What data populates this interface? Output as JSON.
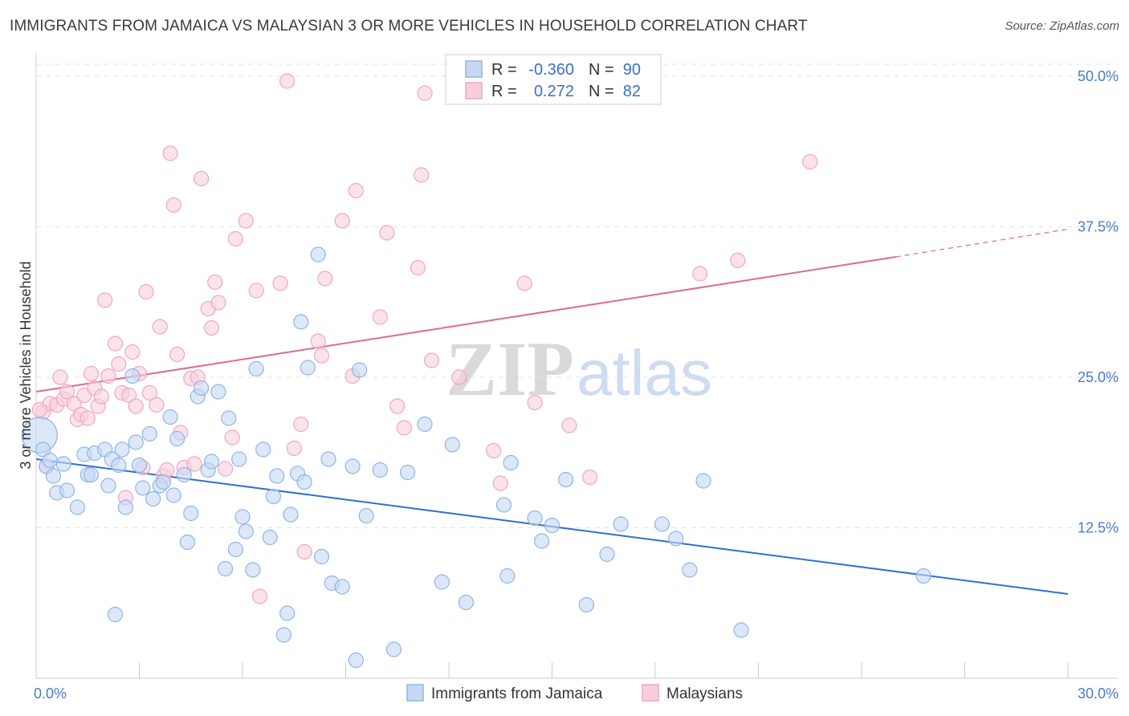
{
  "header": {
    "title": "IMMIGRANTS FROM JAMAICA VS MALAYSIAN 3 OR MORE VEHICLES IN HOUSEHOLD CORRELATION CHART",
    "source": "Source: ZipAtlas.com"
  },
  "watermark": {
    "zip": "ZIP",
    "atlas": "atlas"
  },
  "legend": {
    "rows": [
      {
        "r_label": "R =",
        "r_value": "-0.360",
        "n_label": "N =",
        "n_value": "90"
      },
      {
        "r_label": "R =",
        "r_value": "0.272",
        "n_label": "N =",
        "n_value": "82"
      }
    ]
  },
  "chart_data": {
    "type": "scatter",
    "title": "IMMIGRANTS FROM JAMAICA VS MALAYSIAN 3 OR MORE VEHICLES IN HOUSEHOLD CORRELATION CHART",
    "xlabel": "",
    "ylabel": "3 or more Vehicles in Household",
    "xlim": [
      0,
      30
    ],
    "ylim": [
      0,
      51
    ],
    "x_tick_labels": [
      "0.0%",
      "30.0%"
    ],
    "y_ticks": [
      12.5,
      25.0,
      37.5,
      50.0
    ],
    "y_tick_labels": [
      "12.5%",
      "25.0%",
      "37.5%",
      "50.0%"
    ],
    "grid": true,
    "legend_position": "top-center",
    "series": [
      {
        "name": "Immigrants from Jamaica",
        "color": "#8fb4e6",
        "fill": "#c5d9f3",
        "line_color": "#2f6fd0",
        "r": -0.36,
        "n": 90,
        "trend": {
          "x0": 0,
          "y0": 18.2,
          "x1": 30,
          "y1": 7.0
        },
        "points": [
          [
            0.1,
            20.2
          ],
          [
            0.2,
            19.0
          ],
          [
            0.3,
            17.6
          ],
          [
            0.5,
            16.8
          ],
          [
            0.6,
            15.4
          ],
          [
            0.8,
            17.8
          ],
          [
            0.9,
            15.6
          ],
          [
            1.2,
            14.2
          ],
          [
            1.4,
            18.6
          ],
          [
            1.5,
            16.9
          ],
          [
            1.6,
            16.9
          ],
          [
            1.7,
            18.7
          ],
          [
            2.0,
            19.0
          ],
          [
            2.1,
            16.0
          ],
          [
            2.2,
            18.2
          ],
          [
            2.4,
            17.7
          ],
          [
            2.5,
            19.0
          ],
          [
            2.6,
            14.2
          ],
          [
            2.8,
            25.1
          ],
          [
            2.9,
            19.6
          ],
          [
            3.0,
            17.7
          ],
          [
            3.1,
            15.8
          ],
          [
            3.3,
            20.3
          ],
          [
            3.4,
            14.9
          ],
          [
            3.6,
            16.0
          ],
          [
            3.7,
            16.3
          ],
          [
            3.9,
            21.7
          ],
          [
            4.0,
            15.2
          ],
          [
            4.1,
            19.9
          ],
          [
            4.3,
            16.9
          ],
          [
            4.4,
            11.3
          ],
          [
            4.5,
            13.7
          ],
          [
            4.7,
            23.4
          ],
          [
            4.8,
            24.1
          ],
          [
            5.0,
            17.3
          ],
          [
            5.1,
            18.0
          ],
          [
            5.3,
            23.8
          ],
          [
            5.5,
            9.1
          ],
          [
            5.6,
            21.6
          ],
          [
            5.8,
            10.7
          ],
          [
            5.9,
            18.2
          ],
          [
            6.0,
            13.4
          ],
          [
            6.1,
            12.2
          ],
          [
            6.3,
            9.0
          ],
          [
            6.4,
            25.7
          ],
          [
            6.6,
            19.0
          ],
          [
            6.8,
            11.7
          ],
          [
            6.9,
            15.1
          ],
          [
            7.0,
            16.8
          ],
          [
            7.2,
            3.6
          ],
          [
            7.3,
            5.4
          ],
          [
            7.4,
            13.6
          ],
          [
            7.6,
            17.0
          ],
          [
            7.7,
            29.6
          ],
          [
            7.8,
            16.3
          ],
          [
            7.9,
            25.8
          ],
          [
            8.2,
            35.2
          ],
          [
            8.3,
            10.1
          ],
          [
            8.5,
            18.2
          ],
          [
            8.6,
            7.9
          ],
          [
            8.9,
            7.6
          ],
          [
            9.2,
            17.6
          ],
          [
            9.3,
            1.5
          ],
          [
            9.4,
            25.6
          ],
          [
            9.6,
            13.5
          ],
          [
            10.0,
            17.3
          ],
          [
            10.4,
            2.4
          ],
          [
            10.8,
            17.1
          ],
          [
            11.3,
            21.1
          ],
          [
            11.8,
            8.0
          ],
          [
            12.1,
            19.4
          ],
          [
            12.5,
            6.3
          ],
          [
            13.6,
            14.4
          ],
          [
            13.7,
            8.5
          ],
          [
            13.8,
            17.9
          ],
          [
            14.5,
            13.3
          ],
          [
            14.7,
            11.4
          ],
          [
            15.0,
            12.7
          ],
          [
            15.4,
            16.5
          ],
          [
            16.0,
            6.1
          ],
          [
            16.6,
            10.3
          ],
          [
            17.0,
            12.8
          ],
          [
            18.2,
            12.8
          ],
          [
            18.6,
            11.6
          ],
          [
            19.0,
            9.0
          ],
          [
            19.4,
            16.4
          ],
          [
            20.5,
            4.0
          ],
          [
            25.8,
            8.5
          ],
          [
            0.4,
            18.1
          ],
          [
            2.3,
            5.3
          ]
        ],
        "point_sizes": {
          "0": "large"
        }
      },
      {
        "name": "Malaysians",
        "color": "#f0a7bf",
        "fill": "#f8cedd",
        "line_color": "#e06891",
        "r": 0.272,
        "n": 82,
        "trend": {
          "x0": 0,
          "y0": 23.8,
          "x1": 25,
          "y1": 35.0,
          "dashed_to": {
            "x": 30,
            "y": 37.3
          }
        },
        "points": [
          [
            0.2,
            22.1
          ],
          [
            0.3,
            17.6
          ],
          [
            0.4,
            22.8
          ],
          [
            0.6,
            22.7
          ],
          [
            0.7,
            25.0
          ],
          [
            0.8,
            23.2
          ],
          [
            0.9,
            23.8
          ],
          [
            1.1,
            22.8
          ],
          [
            1.2,
            21.5
          ],
          [
            1.3,
            21.9
          ],
          [
            1.4,
            23.5
          ],
          [
            1.5,
            21.6
          ],
          [
            1.6,
            25.3
          ],
          [
            1.7,
            24.1
          ],
          [
            1.8,
            22.6
          ],
          [
            1.9,
            23.4
          ],
          [
            2.0,
            31.4
          ],
          [
            2.1,
            25.1
          ],
          [
            2.3,
            27.8
          ],
          [
            2.4,
            26.1
          ],
          [
            2.5,
            23.7
          ],
          [
            2.6,
            15.0
          ],
          [
            2.7,
            23.5
          ],
          [
            2.8,
            27.1
          ],
          [
            2.9,
            22.6
          ],
          [
            3.0,
            25.3
          ],
          [
            3.1,
            17.5
          ],
          [
            3.2,
            32.1
          ],
          [
            3.3,
            23.7
          ],
          [
            3.5,
            22.7
          ],
          [
            3.6,
            29.2
          ],
          [
            3.7,
            16.8
          ],
          [
            3.8,
            17.3
          ],
          [
            3.9,
            43.6
          ],
          [
            4.0,
            39.3
          ],
          [
            4.1,
            26.9
          ],
          [
            4.2,
            20.4
          ],
          [
            4.3,
            17.5
          ],
          [
            4.5,
            24.9
          ],
          [
            4.6,
            17.8
          ],
          [
            4.7,
            25.0
          ],
          [
            4.8,
            41.5
          ],
          [
            5.0,
            30.7
          ],
          [
            5.1,
            29.1
          ],
          [
            5.2,
            32.9
          ],
          [
            5.3,
            31.2
          ],
          [
            5.5,
            17.4
          ],
          [
            5.7,
            20.0
          ],
          [
            5.8,
            36.5
          ],
          [
            6.1,
            38.0
          ],
          [
            6.4,
            32.2
          ],
          [
            6.5,
            6.8
          ],
          [
            7.1,
            32.8
          ],
          [
            7.3,
            49.6
          ],
          [
            7.5,
            19.1
          ],
          [
            7.7,
            21.1
          ],
          [
            7.8,
            10.5
          ],
          [
            8.2,
            28.0
          ],
          [
            8.3,
            26.8
          ],
          [
            8.4,
            33.2
          ],
          [
            8.9,
            38.0
          ],
          [
            9.2,
            25.1
          ],
          [
            9.3,
            40.5
          ],
          [
            10.0,
            30.0
          ],
          [
            10.2,
            37.0
          ],
          [
            10.5,
            22.6
          ],
          [
            10.7,
            20.8
          ],
          [
            11.1,
            34.1
          ],
          [
            11.2,
            41.8
          ],
          [
            11.3,
            48.6
          ],
          [
            11.5,
            26.4
          ],
          [
            12.3,
            25.0
          ],
          [
            13.3,
            18.9
          ],
          [
            13.5,
            16.2
          ],
          [
            14.2,
            32.8
          ],
          [
            14.5,
            22.9
          ],
          [
            15.5,
            21.0
          ],
          [
            16.1,
            16.7
          ],
          [
            19.3,
            33.6
          ],
          [
            20.4,
            34.7
          ],
          [
            22.5,
            42.9
          ],
          [
            0.1,
            22.3
          ]
        ]
      }
    ]
  },
  "bottom_legend": {
    "items": [
      {
        "label": "Immigrants from Jamaica"
      },
      {
        "label": "Malaysians"
      }
    ]
  }
}
